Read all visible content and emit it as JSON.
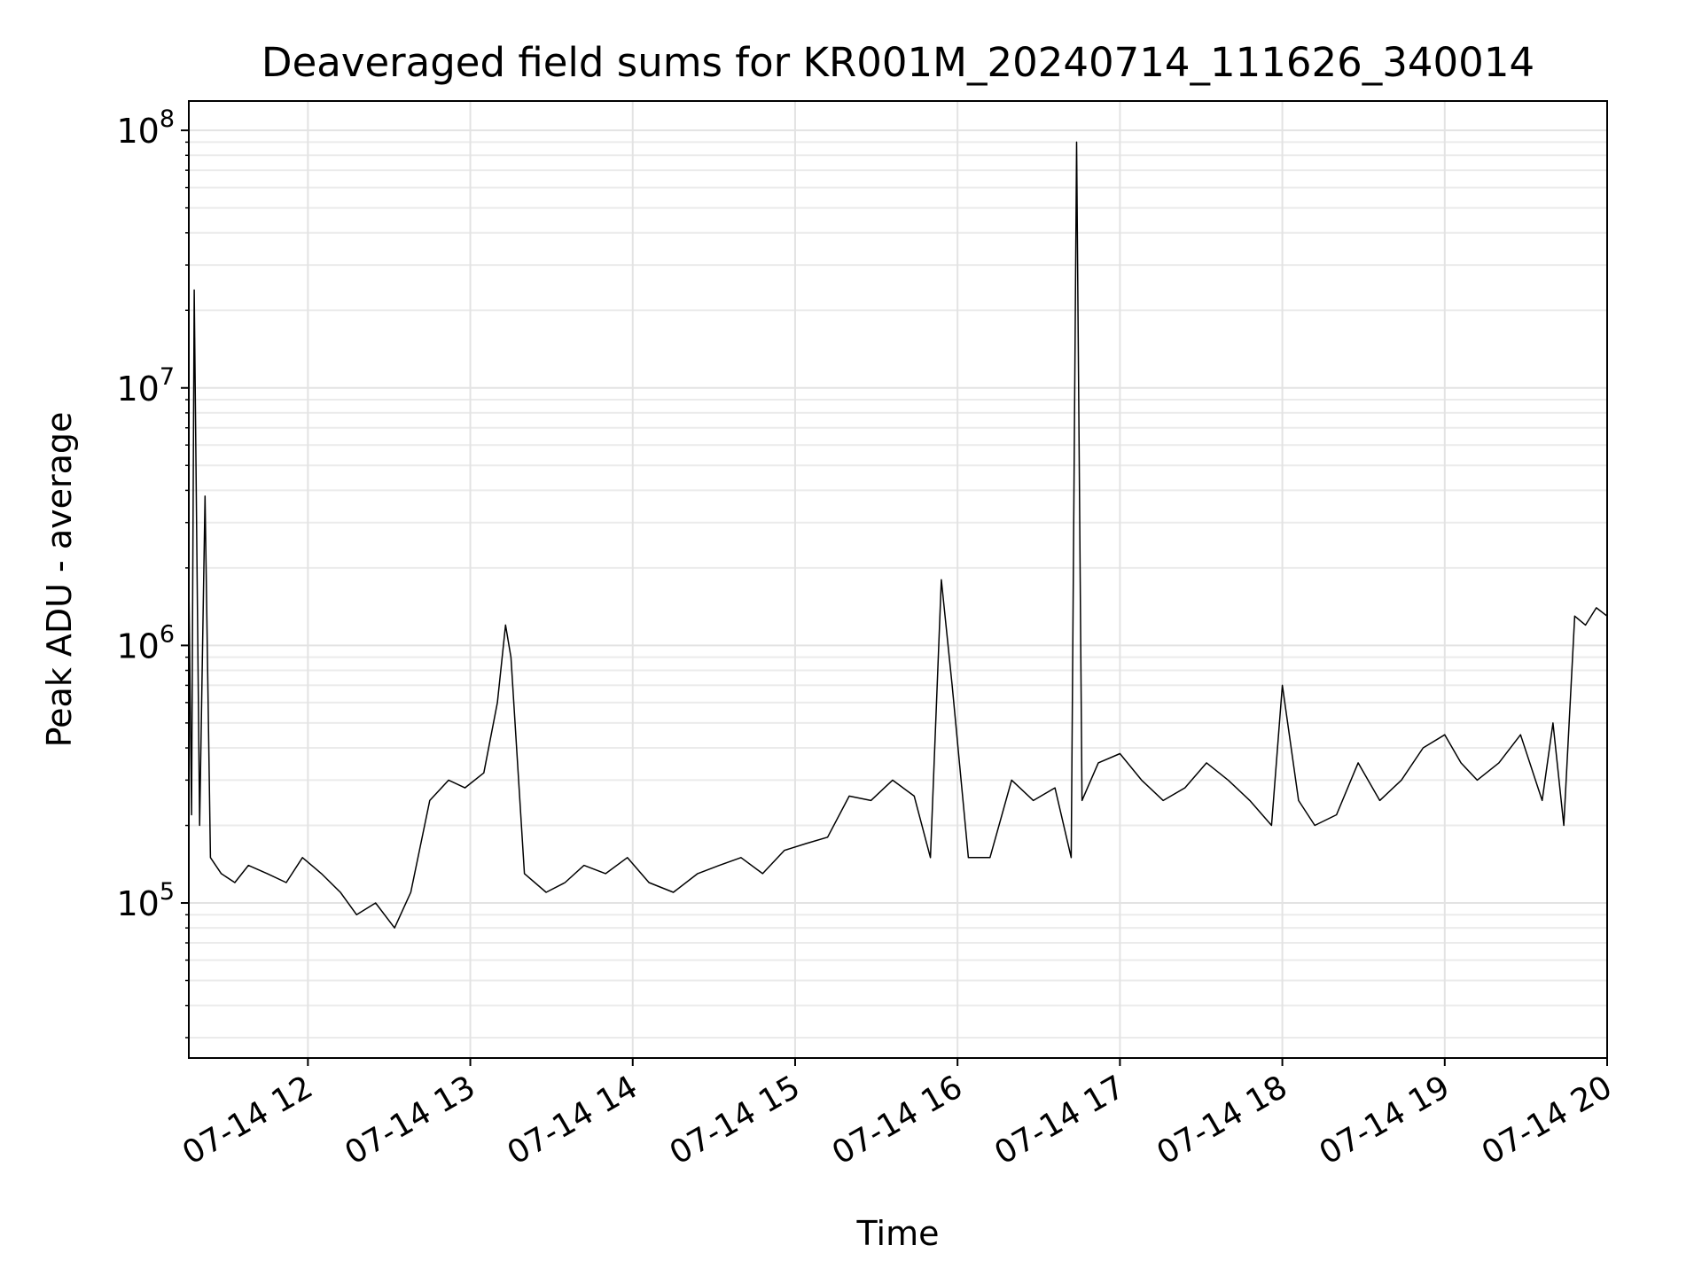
{
  "chart_data": {
    "type": "line",
    "title": "Deaveraged field sums for KR001M_20240714_111626_340014",
    "xlabel": "Time",
    "ylabel": "Peak ADU - average",
    "xlim": [
      "2024-07-14T11:16",
      "2024-07-14T20:00"
    ],
    "ylim": [
      25000,
      130000000
    ],
    "yscale": "log",
    "grid": true,
    "legend": "none",
    "line_color": "#000000",
    "x_tick_labels": [
      "07-14 12",
      "07-14 13",
      "07-14 14",
      "07-14 15",
      "07-14 16",
      "07-14 17",
      "07-14 18",
      "07-14 19",
      "07-14 20"
    ],
    "x_tick_values": [
      "2024-07-14T12:00",
      "2024-07-14T13:00",
      "2024-07-14T14:00",
      "2024-07-14T15:00",
      "2024-07-14T16:00",
      "2024-07-14T17:00",
      "2024-07-14T18:00",
      "2024-07-14T19:00",
      "2024-07-14T20:00"
    ],
    "y_tick_labels": [
      {
        "base": "10",
        "exp": "5"
      },
      {
        "base": "10",
        "exp": "6"
      },
      {
        "base": "10",
        "exp": "7"
      },
      {
        "base": "10",
        "exp": "8"
      }
    ],
    "y_tick_values": [
      100000,
      1000000,
      10000000,
      100000000
    ],
    "series": [
      {
        "x": [
          "2024-07-14T11:16",
          "2024-07-14T11:17",
          "2024-07-14T11:18",
          "2024-07-14T11:20",
          "2024-07-14T11:22",
          "2024-07-14T11:24",
          "2024-07-14T11:28",
          "2024-07-14T11:33",
          "2024-07-14T11:38",
          "2024-07-14T11:45",
          "2024-07-14T11:52",
          "2024-07-14T11:58",
          "2024-07-14T12:05",
          "2024-07-14T12:12",
          "2024-07-14T12:18",
          "2024-07-14T12:25",
          "2024-07-14T12:32",
          "2024-07-14T12:38",
          "2024-07-14T12:45",
          "2024-07-14T12:52",
          "2024-07-14T12:58",
          "2024-07-14T13:05",
          "2024-07-14T13:10",
          "2024-07-14T13:13",
          "2024-07-14T13:15",
          "2024-07-14T13:20",
          "2024-07-14T13:28",
          "2024-07-14T13:35",
          "2024-07-14T13:42",
          "2024-07-14T13:50",
          "2024-07-14T13:58",
          "2024-07-14T14:06",
          "2024-07-14T14:15",
          "2024-07-14T14:24",
          "2024-07-14T14:32",
          "2024-07-14T14:40",
          "2024-07-14T14:48",
          "2024-07-14T14:56",
          "2024-07-14T15:04",
          "2024-07-14T15:12",
          "2024-07-14T15:20",
          "2024-07-14T15:28",
          "2024-07-14T15:36",
          "2024-07-14T15:44",
          "2024-07-14T15:50",
          "2024-07-14T15:54",
          "2024-07-14T15:58",
          "2024-07-14T16:04",
          "2024-07-14T16:12",
          "2024-07-14T16:20",
          "2024-07-14T16:28",
          "2024-07-14T16:36",
          "2024-07-14T16:42",
          "2024-07-14T16:44",
          "2024-07-14T16:46",
          "2024-07-14T16:52",
          "2024-07-14T17:00",
          "2024-07-14T17:08",
          "2024-07-14T17:16",
          "2024-07-14T17:24",
          "2024-07-14T17:32",
          "2024-07-14T17:40",
          "2024-07-14T17:48",
          "2024-07-14T17:56",
          "2024-07-14T18:00",
          "2024-07-14T18:06",
          "2024-07-14T18:12",
          "2024-07-14T18:20",
          "2024-07-14T18:28",
          "2024-07-14T18:36",
          "2024-07-14T18:44",
          "2024-07-14T18:52",
          "2024-07-14T19:00",
          "2024-07-14T19:06",
          "2024-07-14T19:12",
          "2024-07-14T19:20",
          "2024-07-14T19:28",
          "2024-07-14T19:36",
          "2024-07-14T19:40",
          "2024-07-14T19:44",
          "2024-07-14T19:48",
          "2024-07-14T19:52",
          "2024-07-14T19:56",
          "2024-07-14T20:00"
        ],
        "values": [
          1800000,
          220000,
          24000000,
          200000,
          3800000,
          150000,
          130000,
          120000,
          140000,
          130000,
          120000,
          150000,
          130000,
          110000,
          90000,
          100000,
          80000,
          110000,
          250000,
          300000,
          280000,
          320000,
          600000,
          1200000,
          900000,
          130000,
          110000,
          120000,
          140000,
          130000,
          150000,
          120000,
          110000,
          130000,
          140000,
          150000,
          130000,
          160000,
          170000,
          180000,
          260000,
          250000,
          300000,
          260000,
          150000,
          1800000,
          700000,
          150000,
          150000,
          300000,
          250000,
          280000,
          150000,
          90000000,
          250000,
          350000,
          380000,
          300000,
          250000,
          280000,
          350000,
          300000,
          250000,
          200000,
          700000,
          250000,
          200000,
          220000,
          350000,
          250000,
          300000,
          400000,
          450000,
          350000,
          300000,
          350000,
          450000,
          250000,
          500000,
          200000,
          1300000,
          1200000,
          1400000,
          1300000
        ]
      }
    ]
  }
}
